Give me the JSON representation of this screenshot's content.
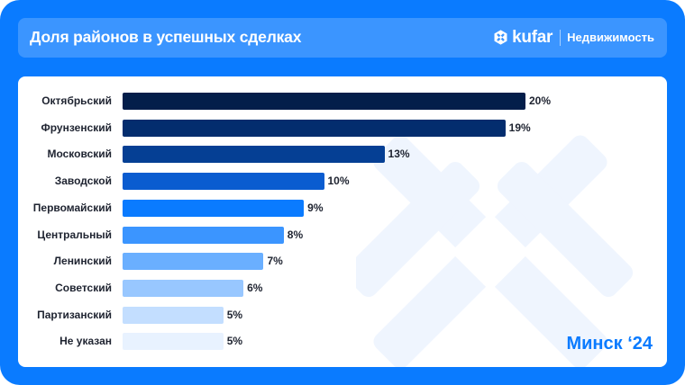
{
  "header": {
    "title": "Доля районов в успешных сделках",
    "brand_logo": "kufar",
    "brand_section": "Недвижимость",
    "logo_icon": "kufar-snowflake-icon"
  },
  "footer": {
    "city_label": "Минск ‘24"
  },
  "colors": {
    "background": "#0A7BFF",
    "header_bg": "#3B95FF",
    "panel_bg": "#FFFFFF",
    "text": "#1E2330",
    "accent": "#0A7BFF"
  },
  "chart_data": {
    "type": "bar",
    "orientation": "horizontal",
    "title": "Доля районов в успешных сделках",
    "xlabel": "",
    "ylabel": "",
    "xlim": [
      0,
      20
    ],
    "grid": false,
    "unit": "%",
    "categories": [
      "Октябрьский",
      "Фрунзенский",
      "Московский",
      "Заводской",
      "Первомайский",
      "Центральный",
      "Ленинский",
      "Советский",
      "Партизанский",
      "Не указан"
    ],
    "values": [
      20,
      19,
      13,
      10,
      9,
      8,
      7,
      6,
      5,
      5
    ],
    "value_labels": [
      "20%",
      "19%",
      "13%",
      "10%",
      "9%",
      "8%",
      "7%",
      "6%",
      "5%",
      "5%"
    ],
    "bar_colors": [
      "#031E4A",
      "#032D6E",
      "#053F94",
      "#0A5CD0",
      "#0A7BFF",
      "#3B95FF",
      "#6AAFFF",
      "#98C7FF",
      "#C3DEFF",
      "#E8F2FF"
    ]
  }
}
